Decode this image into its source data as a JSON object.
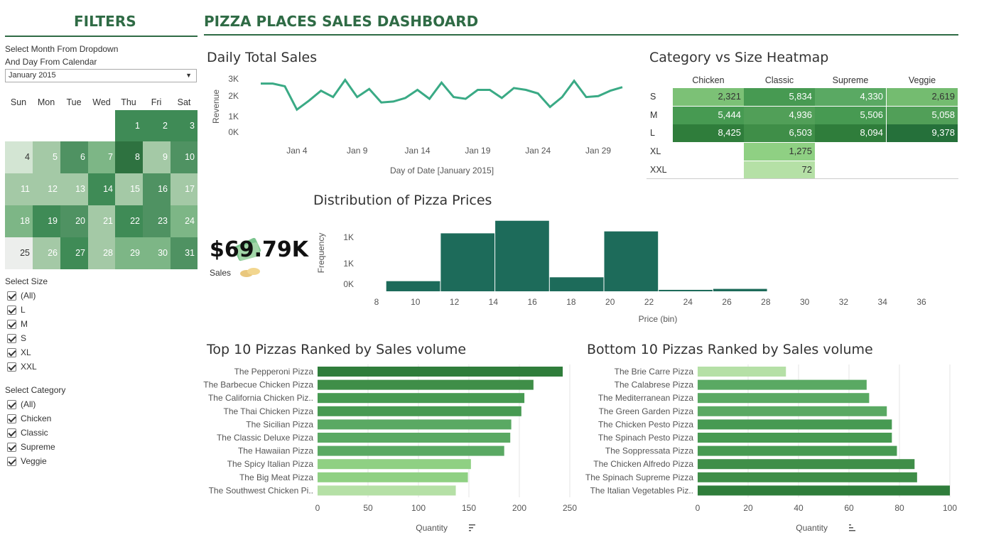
{
  "filters": {
    "title": "FILTERS",
    "instruction_line1": "Select Month From Dropdown",
    "instruction_line2": "And Day From Calendar",
    "month_value": "January 2015",
    "calendar": {
      "days_of_week": [
        "Sun",
        "Mon",
        "Tue",
        "Wed",
        "Thu",
        "Fri",
        "Sat"
      ],
      "start_weekday": 4,
      "days": [
        1,
        2,
        3,
        4,
        5,
        6,
        7,
        8,
        9,
        10,
        11,
        12,
        13,
        14,
        15,
        16,
        17,
        18,
        19,
        20,
        21,
        22,
        23,
        24,
        25,
        26,
        27,
        28,
        29,
        30,
        31
      ],
      "colors": [
        "#3f8b56",
        "#3f8b56",
        "#3f8b56",
        "#d3e5d3",
        "#a4c9a6",
        "#4f9262",
        "#7db686",
        "#2e7240",
        "#a4c9a6",
        "#4f9262",
        "#a4c9a6",
        "#a4c9a6",
        "#a4c9a6",
        "#3f8b56",
        "#a4c9a6",
        "#4f9262",
        "#a4c9a6",
        "#7db686",
        "#3f8b56",
        "#4f9262",
        "#a4c9a6",
        "#3f8b56",
        "#4f9262",
        "#7db686",
        "#eceeec",
        "#a4c9a6",
        "#3f8b56",
        "#a4c9a6",
        "#7db686",
        "#7db686",
        "#4f9262"
      ]
    },
    "size": {
      "label": "Select Size",
      "options": [
        "(All)",
        "L",
        "M",
        "S",
        "XL",
        "XXL"
      ]
    },
    "category": {
      "label": "Select Category",
      "options": [
        "(All)",
        "Chicken",
        "Classic",
        "Supreme",
        "Veggie"
      ]
    }
  },
  "dashboard": {
    "title": "PIZZA PLACES SALES DASHBOARD"
  },
  "kpi": {
    "value": "$69.79K",
    "label": "Sales"
  },
  "daily_sales": {
    "title": "Daily Total Sales",
    "ylabel": "Revenue",
    "xlabel": "Day of Date [January 2015]",
    "y_ticks": [
      "0K",
      "1K",
      "2K",
      "3K"
    ],
    "x_ticks": [
      "Jan 4",
      "Jan 9",
      "Jan 14",
      "Jan 19",
      "Jan 24",
      "Jan 29"
    ],
    "line_color": "#3aaa85"
  },
  "heatmap": {
    "title": "Category vs Size Heatmap",
    "columns": [
      "Chicken",
      "Classic",
      "Supreme",
      "Veggie"
    ],
    "rows": [
      "S",
      "M",
      "L",
      "XL",
      "XXL"
    ],
    "cells": [
      [
        "2,321",
        "5,834",
        "4,330",
        "2,619"
      ],
      [
        "5,444",
        "4,936",
        "5,506",
        "5,058"
      ],
      [
        "8,425",
        "6,503",
        "8,094",
        "9,378"
      ],
      [
        "",
        "1,275",
        "",
        ""
      ],
      [
        "",
        "72",
        "",
        ""
      ]
    ],
    "cell_colors": [
      [
        "#7cc176",
        "#479a52",
        "#5aa963",
        "#74bc70"
      ],
      [
        "#479a52",
        "#519f58",
        "#479a52",
        "#519f58"
      ],
      [
        "#2f7d3b",
        "#3f8e48",
        "#2f7d3b",
        "#25703a"
      ],
      [
        "",
        "#8fd083",
        "",
        ""
      ],
      [
        "",
        "#b5e0a6",
        "",
        ""
      ]
    ]
  },
  "price_dist": {
    "title": "Distribution of Pizza Prices",
    "ylabel": "Frequency",
    "xlabel": "Price (bin)",
    "y_ticks": [
      "0K",
      "1K",
      "1K"
    ],
    "x_ticks": [
      "8",
      "10",
      "12",
      "14",
      "16",
      "18",
      "20",
      "22",
      "24",
      "26",
      "28",
      "30",
      "32",
      "36",
      "34"
    ],
    "bar_color": "#1d6b5a"
  },
  "top10": {
    "title": "Top 10 Pizzas Ranked by Sales volume",
    "xlabel": "Quantity",
    "x_ticks": [
      "0",
      "50",
      "100",
      "150",
      "200",
      "250"
    ],
    "pizzas": [
      "The Pepperoni Pizza",
      "The Barbecue Chicken Pizza",
      "The California Chicken Piz..",
      "The Thai Chicken Pizza",
      "The Sicilian Pizza",
      "The Classic Deluxe Pizza",
      "The Hawaiian Pizza",
      "The Spicy Italian Pizza",
      "The Big Meat Pizza",
      "The Southwest Chicken Pi.."
    ]
  },
  "bottom10": {
    "title": "Bottom 10 Pizzas Ranked by Sales volume",
    "xlabel": "Quantity",
    "x_ticks": [
      "0",
      "20",
      "40",
      "60",
      "80",
      "100"
    ],
    "pizzas": [
      "The Brie Carre Pizza",
      "The Calabrese Pizza",
      "The Mediterranean Pizza",
      "The Green Garden Pizza",
      "The Chicken Pesto Pizza",
      "The Spinach Pesto Pizza",
      "The Soppressata Pizza",
      "The Chicken Alfredo Pizza",
      "The Spinach Supreme Pizza",
      "The Italian Vegetables Piz.."
    ]
  },
  "chart_data": [
    {
      "type": "line",
      "title": "Daily Total Sales",
      "xlabel": "Day of Date [January 2015]",
      "ylabel": "Revenue",
      "x": [
        1,
        2,
        3,
        4,
        5,
        6,
        7,
        8,
        9,
        10,
        11,
        12,
        13,
        14,
        15,
        16,
        17,
        18,
        19,
        20,
        21,
        22,
        23,
        24,
        25,
        26,
        27,
        28,
        29,
        30,
        31
      ],
      "y": [
        2700,
        2700,
        2550,
        1250,
        1750,
        2300,
        1950,
        2900,
        1950,
        2400,
        1650,
        1700,
        1900,
        2350,
        1850,
        2750,
        1950,
        1850,
        2350,
        2350,
        1900,
        2450,
        2350,
        2150,
        1400,
        1950,
        2850,
        1950,
        2000,
        2300,
        2500
      ],
      "ylim": [
        0,
        3000
      ]
    },
    {
      "type": "bar",
      "title": "Distribution of Pizza Prices",
      "xlabel": "Price (bin)",
      "ylabel": "Frequency",
      "bin_start": [
        8.5,
        11.3,
        14.1,
        16.9,
        19.7,
        22.5,
        25.3
      ],
      "bin_width": 2.8,
      "values": [
        210,
        1200,
        1460,
        290,
        1240,
        30,
        50
      ],
      "ylim": [
        0,
        1500
      ]
    },
    {
      "type": "bar",
      "title": "Top 10 Pizzas Ranked by Sales volume",
      "xlabel": "Quantity",
      "categories": [
        "The Pepperoni Pizza",
        "The Barbecue Chicken Pizza",
        "The California Chicken Piz..",
        "The Thai Chicken Pizza",
        "The Sicilian Pizza",
        "The Classic Deluxe Pizza",
        "The Hawaiian Pizza",
        "The Spicy Italian Pizza",
        "The Big Meat Pizza",
        "The Southwest Chicken Pi.."
      ],
      "values": [
        243,
        214,
        205,
        202,
        192,
        191,
        185,
        152,
        149,
        137
      ],
      "xlim": [
        0,
        250
      ],
      "colors": [
        "#2f7d3b",
        "#3f8e48",
        "#479a52",
        "#479a52",
        "#5aa963",
        "#5aa963",
        "#5aa963",
        "#8fd083",
        "#8fd083",
        "#b5e0a6"
      ]
    },
    {
      "type": "bar",
      "title": "Bottom 10 Pizzas Ranked by Sales volume",
      "xlabel": "Quantity",
      "categories": [
        "The Brie Carre Pizza",
        "The Calabrese Pizza",
        "The Mediterranean Pizza",
        "The Green Garden Pizza",
        "The Chicken Pesto Pizza",
        "The Spinach Pesto Pizza",
        "The Soppressata Pizza",
        "The Chicken Alfredo Pizza",
        "The Spinach Supreme Pizza",
        "The Italian Vegetables Piz.."
      ],
      "values": [
        35,
        67,
        68,
        75,
        77,
        77,
        79,
        86,
        87,
        100
      ],
      "xlim": [
        0,
        100
      ],
      "colors": [
        "#b5e0a6",
        "#5aa963",
        "#5aa963",
        "#5aa963",
        "#479a52",
        "#479a52",
        "#479a52",
        "#3f8e48",
        "#3f8e48",
        "#2f7d3b"
      ]
    }
  ]
}
